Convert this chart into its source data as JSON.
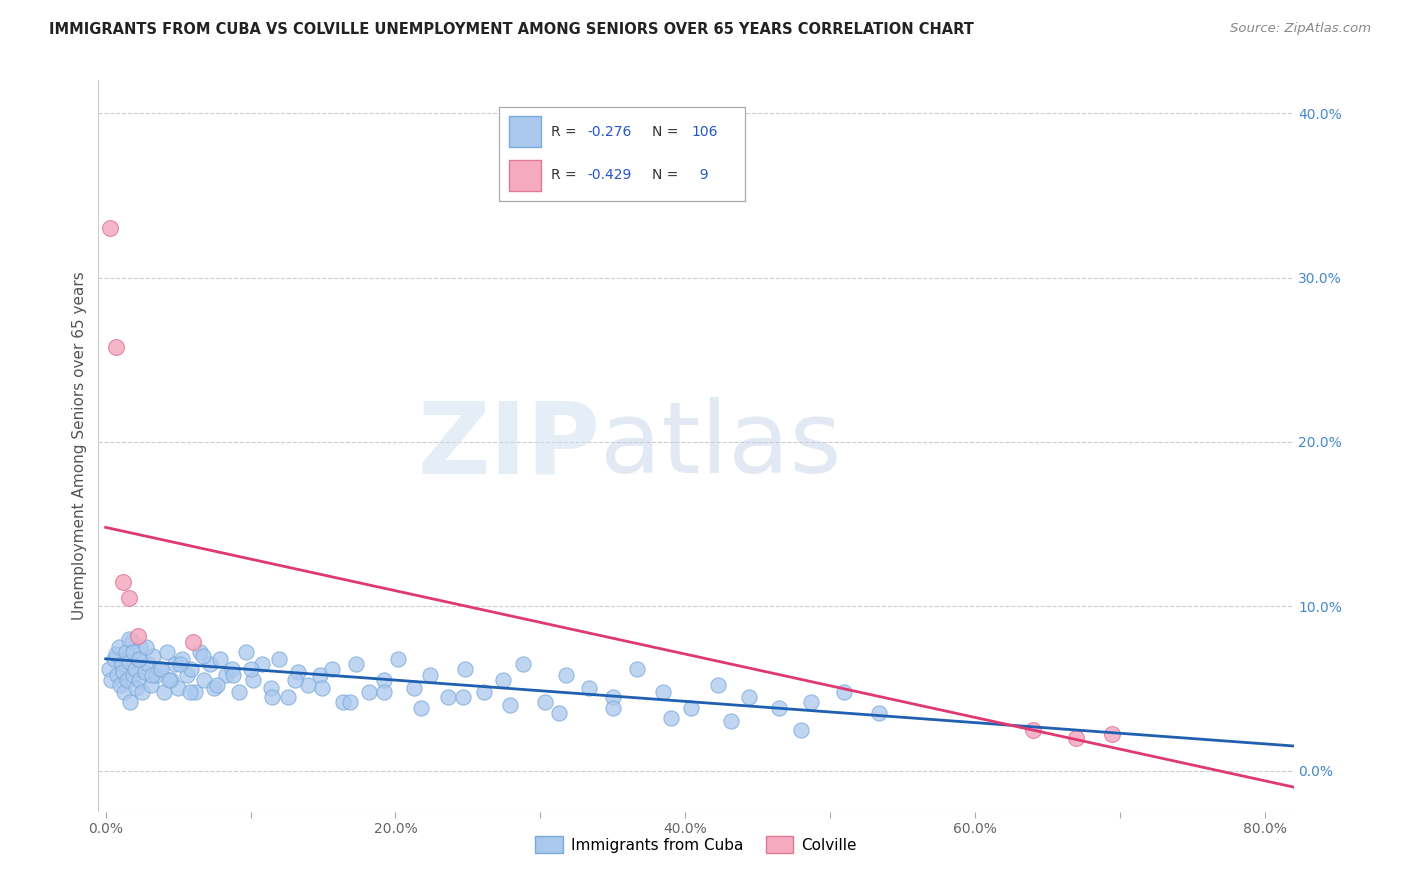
{
  "title": "IMMIGRANTS FROM CUBA VS COLVILLE UNEMPLOYMENT AMONG SENIORS OVER 65 YEARS CORRELATION CHART",
  "source": "Source: ZipAtlas.com",
  "ylabel": "Unemployment Among Seniors over 65 years",
  "xlim": [
    -0.005,
    0.82
  ],
  "ylim": [
    -0.025,
    0.42
  ],
  "xticks": [
    0.0,
    0.1,
    0.2,
    0.3,
    0.4,
    0.5,
    0.6,
    0.7,
    0.8
  ],
  "xticklabels": [
    "0.0%",
    "",
    "20.0%",
    "",
    "40.0%",
    "",
    "60.0%",
    "",
    "80.0%"
  ],
  "yticks_right": [
    0.0,
    0.1,
    0.2,
    0.3,
    0.4
  ],
  "yticklabels_right": [
    "0.0%",
    "10.0%",
    "20.0%",
    "30.0%",
    "40.0%"
  ],
  "blue_color": "#aac8ee",
  "blue_edge_color": "#7aaad8",
  "pink_color": "#f5aac0",
  "pink_edge_color": "#e07898",
  "line_blue": "#2060b0",
  "line_pink": "#e03870",
  "legend_R_blue": "-0.276",
  "legend_N_blue": "106",
  "legend_R_pink": "-0.429",
  "legend_N_pink": "9",
  "legend_label_blue": "Immigrants from Cuba",
  "legend_label_pink": "Colville",
  "watermark_zip": "ZIP",
  "watermark_atlas": "atlas",
  "blue_scatter_x": [
    0.002,
    0.004,
    0.006,
    0.007,
    0.008,
    0.009,
    0.01,
    0.011,
    0.012,
    0.013,
    0.014,
    0.015,
    0.016,
    0.017,
    0.018,
    0.019,
    0.02,
    0.021,
    0.022,
    0.023,
    0.024,
    0.025,
    0.027,
    0.029,
    0.031,
    0.033,
    0.035,
    0.037,
    0.04,
    0.042,
    0.045,
    0.048,
    0.05,
    0.053,
    0.056,
    0.059,
    0.062,
    0.065,
    0.068,
    0.072,
    0.075,
    0.079,
    0.083,
    0.087,
    0.092,
    0.097,
    0.102,
    0.108,
    0.114,
    0.12,
    0.126,
    0.133,
    0.14,
    0.148,
    0.156,
    0.164,
    0.173,
    0.182,
    0.192,
    0.202,
    0.213,
    0.224,
    0.236,
    0.248,
    0.261,
    0.274,
    0.288,
    0.303,
    0.318,
    0.334,
    0.35,
    0.367,
    0.385,
    0.404,
    0.423,
    0.444,
    0.465,
    0.487,
    0.51,
    0.534,
    0.016,
    0.019,
    0.023,
    0.028,
    0.032,
    0.038,
    0.044,
    0.051,
    0.058,
    0.067,
    0.077,
    0.088,
    0.1,
    0.115,
    0.131,
    0.149,
    0.169,
    0.192,
    0.218,
    0.247,
    0.279,
    0.313,
    0.35,
    0.39,
    0.432,
    0.48
  ],
  "blue_scatter_y": [
    0.062,
    0.055,
    0.068,
    0.071,
    0.058,
    0.075,
    0.052,
    0.065,
    0.06,
    0.048,
    0.072,
    0.055,
    0.066,
    0.042,
    0.079,
    0.058,
    0.062,
    0.05,
    0.068,
    0.055,
    0.075,
    0.048,
    0.06,
    0.065,
    0.052,
    0.07,
    0.058,
    0.062,
    0.048,
    0.072,
    0.055,
    0.065,
    0.05,
    0.068,
    0.058,
    0.062,
    0.048,
    0.072,
    0.055,
    0.065,
    0.05,
    0.068,
    0.058,
    0.062,
    0.048,
    0.072,
    0.055,
    0.065,
    0.05,
    0.068,
    0.045,
    0.06,
    0.052,
    0.058,
    0.062,
    0.042,
    0.065,
    0.048,
    0.055,
    0.068,
    0.05,
    0.058,
    0.045,
    0.062,
    0.048,
    0.055,
    0.065,
    0.042,
    0.058,
    0.05,
    0.045,
    0.062,
    0.048,
    0.038,
    0.052,
    0.045,
    0.038,
    0.042,
    0.048,
    0.035,
    0.08,
    0.072,
    0.068,
    0.075,
    0.058,
    0.062,
    0.055,
    0.065,
    0.048,
    0.07,
    0.052,
    0.058,
    0.062,
    0.045,
    0.055,
    0.05,
    0.042,
    0.048,
    0.038,
    0.045,
    0.04,
    0.035,
    0.038,
    0.032,
    0.03,
    0.025
  ],
  "pink_scatter_x": [
    0.003,
    0.007,
    0.012,
    0.016,
    0.022,
    0.06,
    0.64,
    0.67,
    0.695
  ],
  "pink_scatter_y": [
    0.33,
    0.258,
    0.115,
    0.105,
    0.082,
    0.078,
    0.025,
    0.02,
    0.022
  ],
  "blue_trendline_x": [
    0.0,
    0.82
  ],
  "blue_trendline_y": [
    0.068,
    0.015
  ],
  "pink_trendline_x": [
    0.0,
    0.82
  ],
  "pink_trendline_y": [
    0.148,
    -0.01
  ]
}
